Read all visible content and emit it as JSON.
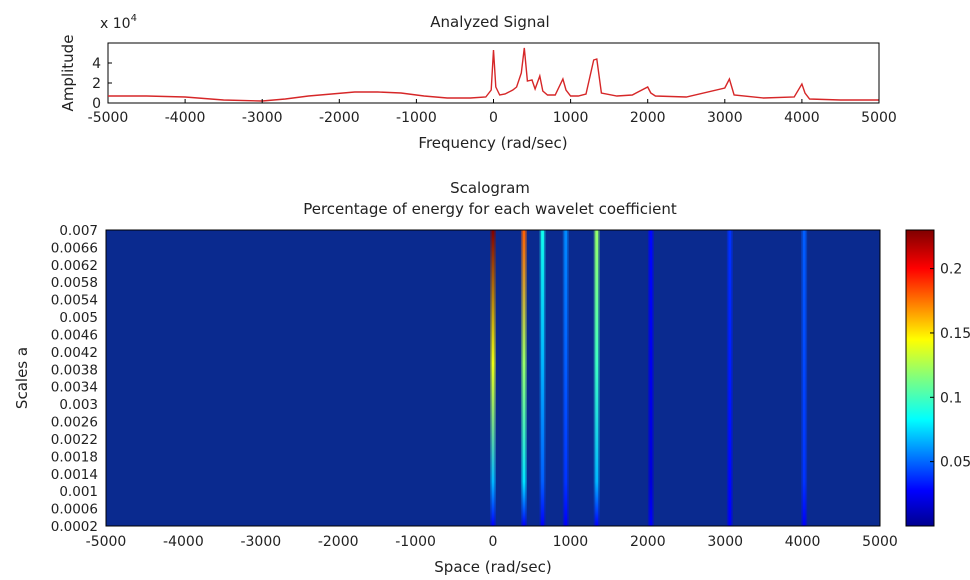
{
  "chart_data": [
    {
      "type": "line",
      "title": "Analyzed Signal",
      "xlabel": "Frequency (rad/sec)",
      "ylabel": "Amplitude",
      "y_exponent": "x 10",
      "y_exponent_power": "4",
      "xlim": [
        -5000,
        5000
      ],
      "ylim": [
        0,
        6
      ],
      "xticks": [
        "-5000",
        "-4000",
        "-3000",
        "-2000",
        "-1000",
        "0",
        "1000",
        "2000",
        "3000",
        "4000",
        "5000"
      ],
      "yticks": [
        "0",
        "2",
        "4"
      ],
      "series": [
        {
          "color": "#d62728",
          "x": [
            -5000,
            -4500,
            -4000,
            -3500,
            -3000,
            -2700,
            -2400,
            -2100,
            -1800,
            -1500,
            -1200,
            -900,
            -600,
            -300,
            -100,
            -30,
            0,
            30,
            80,
            150,
            250,
            300,
            360,
            400,
            440,
            500,
            540,
            600,
            640,
            700,
            800,
            900,
            940,
            1000,
            1100,
            1200,
            1300,
            1340,
            1400,
            1600,
            1800,
            2000,
            2040,
            2100,
            2500,
            3000,
            3060,
            3120,
            3500,
            3900,
            4000,
            4040,
            4100,
            4500,
            5000
          ],
          "y": [
            0.7,
            0.7,
            0.6,
            0.3,
            0.2,
            0.4,
            0.7,
            0.9,
            1.1,
            1.1,
            1.0,
            0.7,
            0.5,
            0.5,
            0.6,
            1.3,
            5.3,
            1.6,
            0.8,
            0.9,
            1.3,
            1.6,
            3.0,
            5.5,
            2.2,
            2.3,
            1.4,
            2.7,
            1.2,
            0.8,
            0.8,
            2.4,
            1.3,
            0.7,
            0.7,
            0.9,
            4.3,
            4.4,
            1.0,
            0.7,
            0.8,
            1.6,
            1.0,
            0.7,
            0.6,
            1.5,
            2.4,
            0.8,
            0.5,
            0.6,
            1.9,
            1.0,
            0.4,
            0.3,
            0.3
          ]
        }
      ]
    },
    {
      "type": "heatmap",
      "title": "Scalogram",
      "subtitle": "Percentage of energy for each wavelet coefficient",
      "xlabel": "Space (rad/sec)",
      "ylabel": "Scales a",
      "xlim": [
        -5000,
        5000
      ],
      "ylim": [
        0.0002,
        0.007
      ],
      "xticks": [
        "-5000",
        "-4000",
        "-3000",
        "-2000",
        "-1000",
        "0",
        "1000",
        "2000",
        "3000",
        "4000",
        "5000"
      ],
      "yticks": [
        "0.007",
        "0.0066",
        "0.0062",
        "0.0058",
        "0.0054",
        "0.005",
        "0.0046",
        "0.0042",
        "0.0038",
        "0.0034",
        "0.003",
        "0.0026",
        "0.0022",
        "0.0018",
        "0.0014",
        "0.001",
        "0.0006",
        "0.0002"
      ],
      "colorbar_ticks": [
        "0.2",
        "0.15",
        "0.1",
        "0.05"
      ],
      "colorbar_range": [
        0,
        0.23
      ],
      "colormap": "jet",
      "background_color": "#0a2a8f",
      "ridges": [
        {
          "x": 0,
          "top": 0.23,
          "mid": 0.14,
          "low": 0.07
        },
        {
          "x": 400,
          "top": 0.18,
          "mid": 0.12,
          "low": 0.08
        },
        {
          "x": 640,
          "top": 0.09,
          "mid": 0.07,
          "low": 0.05
        },
        {
          "x": 940,
          "top": 0.06,
          "mid": 0.05,
          "low": 0.04
        },
        {
          "x": 1340,
          "top": 0.12,
          "mid": 0.1,
          "low": 0.07
        },
        {
          "x": 2040,
          "top": 0.03,
          "mid": 0.025,
          "low": 0.02
        },
        {
          "x": 3060,
          "top": 0.04,
          "mid": 0.035,
          "low": 0.03
        },
        {
          "x": 4020,
          "top": 0.05,
          "mid": 0.045,
          "low": 0.04
        }
      ]
    }
  ]
}
